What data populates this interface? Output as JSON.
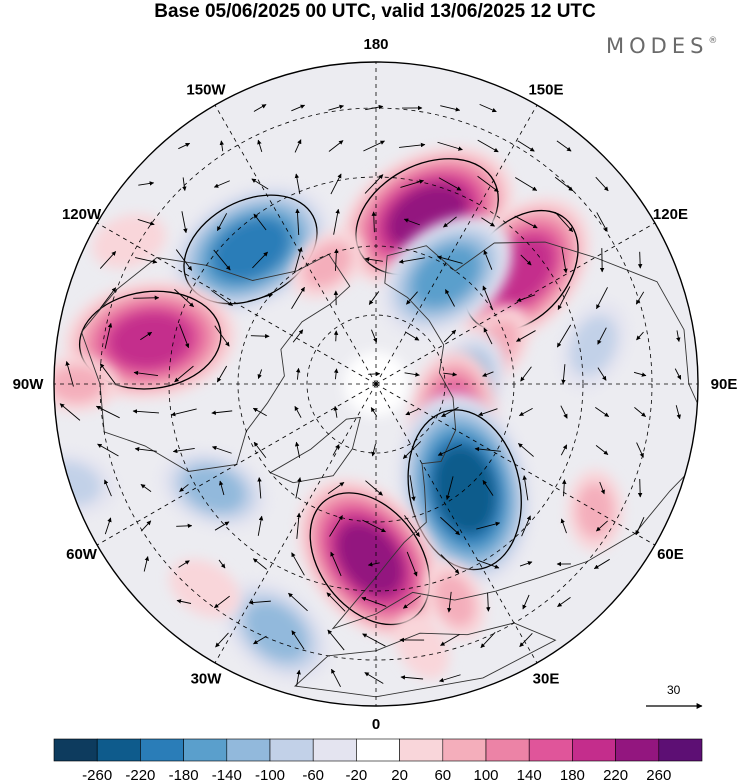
{
  "title": "Base 05/06/2025 00 UTC, valid 13/06/2025 12 UTC",
  "brand": "MODES",
  "brand_mark": "®",
  "projection": "north-polar-stereographic",
  "longitude_labels": [
    {
      "lon": 180,
      "text": "180"
    },
    {
      "lon": 150,
      "text": "150E"
    },
    {
      "lon": 120,
      "text": "120E"
    },
    {
      "lon": 90,
      "text": "90E"
    },
    {
      "lon": 60,
      "text": "60E"
    },
    {
      "lon": 30,
      "text": "30E"
    },
    {
      "lon": 0,
      "text": "0"
    },
    {
      "lon": -30,
      "text": "30W"
    },
    {
      "lon": -60,
      "text": "60W"
    },
    {
      "lon": -90,
      "text": "90W"
    },
    {
      "lon": -120,
      "text": "120W"
    },
    {
      "lon": -150,
      "text": "150W"
    }
  ],
  "wind_reference": {
    "value": "30"
  },
  "colorbar": {
    "ticks": [
      "-260",
      "-220",
      "-180",
      "-140",
      "-100",
      "-60",
      "-20",
      "20",
      "60",
      "100",
      "140",
      "180",
      "220",
      "260"
    ],
    "colors": [
      "#0d3b5e",
      "#0e5b8c",
      "#2a7db8",
      "#5a9fcc",
      "#92b9dc",
      "#c2d1e8",
      "#e4e4f0",
      "#ffffff",
      "#f9d6da",
      "#f4aebb",
      "#ec83a6",
      "#e0559a",
      "#c42d8c",
      "#93167f",
      "#5d0f74"
    ]
  },
  "anomalies": [
    {
      "lon": 163,
      "lat": 52,
      "value": 230
    },
    {
      "lon": -137,
      "lat": 50,
      "value": -210
    },
    {
      "lon": -101,
      "lat": 40,
      "value": 210
    },
    {
      "lon": 128,
      "lat": 50,
      "value": 200
    },
    {
      "lon": -158,
      "lat": 62,
      "value": 60
    },
    {
      "lon": 147,
      "lat": 62,
      "value": -170
    },
    {
      "lon": 108,
      "lat": 62,
      "value": 60
    },
    {
      "lon": 100,
      "lat": 42,
      "value": -80
    },
    {
      "lon": 90,
      "lat": 70,
      "value": -100
    },
    {
      "lon": 68,
      "lat": 72,
      "value": 140
    },
    {
      "lon": 40,
      "lat": 60,
      "value": -250
    },
    {
      "lon": -2,
      "lat": 52,
      "value": 220
    },
    {
      "lon": -22,
      "lat": 32,
      "value": -130
    },
    {
      "lon": -57,
      "lat": 48,
      "value": -110
    },
    {
      "lon": -72,
      "lat": 20,
      "value": -80
    },
    {
      "lon": -90,
      "lat": 25,
      "value": 60
    },
    {
      "lon": 20,
      "lat": 40,
      "value": 60
    },
    {
      "lon": 60,
      "lat": 35,
      "value": 60
    },
    {
      "lon": -40,
      "lat": 32,
      "value": 50
    },
    {
      "lon": -120,
      "lat": 28,
      "value": 50
    },
    {
      "lon": 10,
      "lat": 32,
      "value": 40
    }
  ]
}
